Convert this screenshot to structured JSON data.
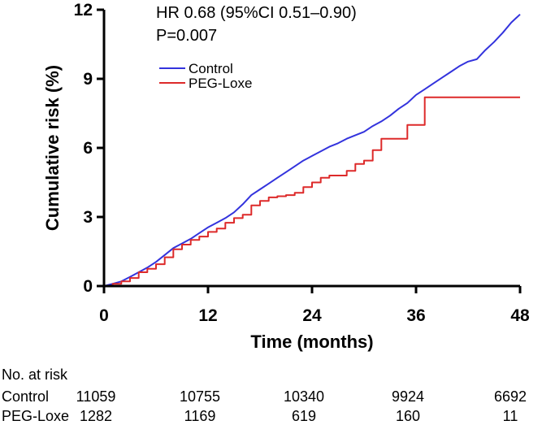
{
  "chart_data": {
    "type": "line",
    "title": "",
    "xlabel": "Time (months)",
    "ylabel": "Cumulative risk (%)",
    "xlim": [
      0,
      48
    ],
    "ylim": [
      0,
      12
    ],
    "xticks": [
      "0",
      "12",
      "24",
      "36",
      "48"
    ],
    "yticks": [
      "0",
      "3",
      "6",
      "9",
      "12"
    ],
    "grid": false,
    "legend_position": "upper-left",
    "annotations": [
      "HR 0.68 (95%CI 0.51–0.90)",
      "P=0.007"
    ],
    "series": [
      {
        "name": "Control",
        "color": "#3333dd",
        "step": false,
        "x": [
          0,
          1,
          2,
          3,
          4,
          5,
          6,
          7,
          8,
          9,
          10,
          11,
          12,
          13,
          14,
          15,
          16,
          17,
          18,
          19,
          20,
          21,
          22,
          23,
          24,
          25,
          26,
          27,
          28,
          29,
          30,
          31,
          32,
          33,
          34,
          35,
          36,
          37,
          38,
          39,
          40,
          41,
          42,
          43,
          44,
          45,
          46,
          47,
          48
        ],
        "y": [
          0,
          0.1,
          0.2,
          0.4,
          0.6,
          0.8,
          1.05,
          1.35,
          1.65,
          1.85,
          2.05,
          2.3,
          2.55,
          2.75,
          2.95,
          3.2,
          3.55,
          3.95,
          4.2,
          4.45,
          4.7,
          4.95,
          5.2,
          5.45,
          5.65,
          5.85,
          6.05,
          6.2,
          6.4,
          6.55,
          6.7,
          6.95,
          7.15,
          7.4,
          7.7,
          7.95,
          8.3,
          8.55,
          8.8,
          9.05,
          9.3,
          9.55,
          9.75,
          9.85,
          10.25,
          10.6,
          11.0,
          11.45,
          11.8
        ]
      },
      {
        "name": "PEG-Loxe",
        "color": "#dd2a2a",
        "step": true,
        "x": [
          0,
          1,
          2,
          3,
          4,
          5,
          6,
          7,
          8,
          9,
          10,
          11,
          12,
          13,
          14,
          15,
          16,
          17,
          18,
          19,
          20,
          21,
          22,
          23,
          24,
          25,
          26,
          27,
          28,
          29,
          30,
          31,
          32,
          33,
          34,
          35,
          36,
          37,
          38,
          48
        ],
        "y": [
          0,
          0.1,
          0.2,
          0.35,
          0.6,
          0.75,
          0.95,
          1.25,
          1.6,
          1.8,
          2.0,
          2.15,
          2.35,
          2.5,
          2.75,
          2.95,
          3.1,
          3.5,
          3.7,
          3.85,
          3.9,
          3.95,
          4.05,
          4.3,
          4.5,
          4.7,
          4.8,
          4.8,
          5.0,
          5.3,
          5.45,
          5.9,
          6.4,
          6.4,
          6.4,
          7.0,
          7.0,
          8.2,
          8.2,
          8.2
        ]
      }
    ]
  },
  "risk_table": {
    "title": "No. at risk",
    "rows": [
      {
        "label": "Control",
        "values": [
          "11059",
          "10755",
          "10340",
          "9924",
          "6692"
        ]
      },
      {
        "label": "PEG-Loxe",
        "values": [
          "1282",
          "1169",
          "619",
          "160",
          "11"
        ]
      }
    ]
  }
}
